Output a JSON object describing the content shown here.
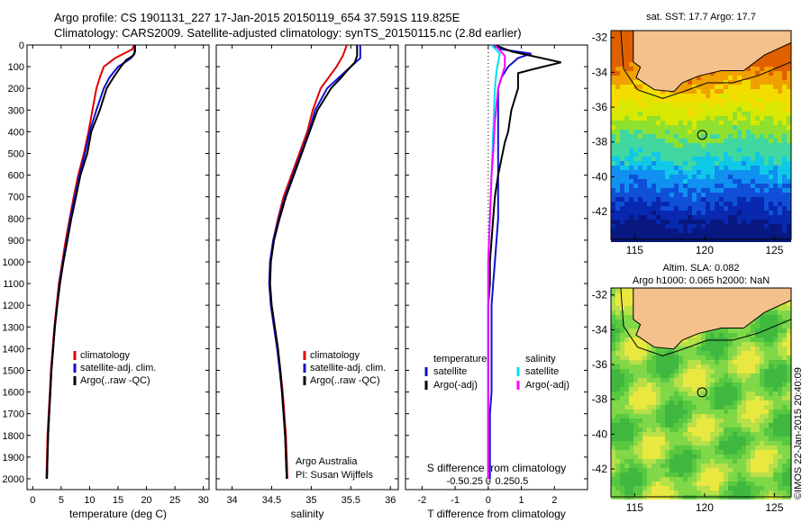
{
  "header": {
    "title_line1": "Argo profile: CS 1901131_227 17-Jan-2015 20150119_654 37.591S 119.825E",
    "title_line2": "Climatology: CARS2009. Satellite-adjusted climatology: synTS_20150115.nc (2.8d earlier)"
  },
  "depth_ticks": [
    0,
    100,
    200,
    300,
    400,
    500,
    600,
    700,
    800,
    900,
    1000,
    1100,
    1200,
    1300,
    1400,
    1500,
    1600,
    1700,
    1800,
    1900,
    2000
  ],
  "colors": {
    "climatology": "#e00000",
    "satellite": "#1010d0",
    "argo": "#000000",
    "argo_adj_sal": "#ff00ff",
    "satellite_sal": "#00e0f0"
  },
  "chart_data": [
    {
      "type": "line",
      "xlabel": "temperature (deg C)",
      "xlim": [
        -1,
        31
      ],
      "ylim": [
        2050,
        0
      ],
      "xticks": [
        0,
        5,
        10,
        15,
        20,
        25,
        30
      ],
      "legend": [
        "climatology",
        "satellite-adj. clim.",
        "Argo(..raw -QC)"
      ],
      "series": [
        {
          "name": "climatology",
          "color": "#e00000",
          "points": [
            [
              17.8,
              0
            ],
            [
              17.5,
              20
            ],
            [
              16,
              40
            ],
            [
              14.5,
              60
            ],
            [
              13.5,
              80
            ],
            [
              12.5,
              100
            ],
            [
              11.8,
              150
            ],
            [
              11.2,
              200
            ],
            [
              10.5,
              300
            ],
            [
              9.8,
              400
            ],
            [
              9,
              500
            ],
            [
              8,
              600
            ],
            [
              7.2,
              700
            ],
            [
              6.5,
              800
            ],
            [
              5.8,
              900
            ],
            [
              5.2,
              1000
            ],
            [
              4.6,
              1100
            ],
            [
              4.2,
              1200
            ],
            [
              3.8,
              1300
            ],
            [
              3.5,
              1400
            ],
            [
              3.2,
              1500
            ],
            [
              3,
              1600
            ],
            [
              2.8,
              1700
            ],
            [
              2.6,
              1800
            ],
            [
              2.5,
              1900
            ],
            [
              2.4,
              2000
            ]
          ]
        },
        {
          "name": "satellite-adj. clim.",
          "color": "#1010d0",
          "points": [
            [
              17.9,
              0
            ],
            [
              17.9,
              40
            ],
            [
              17.3,
              60
            ],
            [
              16.2,
              80
            ],
            [
              15,
              100
            ],
            [
              13.5,
              150
            ],
            [
              12.5,
              200
            ],
            [
              11.2,
              300
            ],
            [
              10,
              400
            ],
            [
              9.2,
              500
            ],
            [
              8.2,
              600
            ],
            [
              7.4,
              700
            ],
            [
              6.6,
              800
            ],
            [
              6,
              900
            ],
            [
              5.3,
              1000
            ],
            [
              4.7,
              1100
            ],
            [
              4.3,
              1200
            ],
            [
              3.9,
              1300
            ],
            [
              3.6,
              1400
            ],
            [
              3.3,
              1500
            ],
            [
              3.1,
              1600
            ],
            [
              2.9,
              1700
            ],
            [
              2.7,
              1800
            ],
            [
              2.6,
              1900
            ],
            [
              2.5,
              2000
            ]
          ]
        },
        {
          "name": "Argo(..raw -QC)",
          "color": "#000000",
          "points": [
            [
              18,
              0
            ],
            [
              18,
              30
            ],
            [
              17.6,
              50
            ],
            [
              16.4,
              70
            ],
            [
              15.5,
              100
            ],
            [
              14.2,
              150
            ],
            [
              13,
              200
            ],
            [
              11.8,
              300
            ],
            [
              10.3,
              400
            ],
            [
              9.6,
              500
            ],
            [
              8.4,
              600
            ],
            [
              7.6,
              700
            ],
            [
              6.8,
              800
            ],
            [
              6.1,
              900
            ],
            [
              5.4,
              1000
            ],
            [
              4.8,
              1100
            ],
            [
              4.3,
              1200
            ],
            [
              3.9,
              1300
            ],
            [
              3.6,
              1400
            ],
            [
              3.3,
              1500
            ],
            [
              3.1,
              1600
            ],
            [
              2.9,
              1700
            ],
            [
              2.7,
              1800
            ],
            [
              2.6,
              1900
            ],
            [
              2.5,
              2000
            ]
          ]
        }
      ]
    },
    {
      "type": "line",
      "xlabel": "salinity",
      "xlim": [
        33.8,
        36.1
      ],
      "ylim": [
        2050,
        0
      ],
      "xticks": [
        34,
        34.5,
        35,
        35.5,
        36
      ],
      "legend": [
        "climatology",
        "satellite-adj. clim.",
        "Argo(..raw -QC)"
      ],
      "annotation": [
        "Argo Australia",
        "PI: Susan Wijffels"
      ],
      "series": [
        {
          "name": "climatology",
          "color": "#e00000",
          "points": [
            [
              35.45,
              0
            ],
            [
              35.4,
              50
            ],
            [
              35.32,
              100
            ],
            [
              35.22,
              150
            ],
            [
              35.12,
              200
            ],
            [
              35.02,
              300
            ],
            [
              34.95,
              400
            ],
            [
              34.85,
              500
            ],
            [
              34.75,
              600
            ],
            [
              34.65,
              700
            ],
            [
              34.58,
              800
            ],
            [
              34.52,
              900
            ],
            [
              34.48,
              1000
            ],
            [
              34.47,
              1100
            ],
            [
              34.49,
              1200
            ],
            [
              34.53,
              1300
            ],
            [
              34.57,
              1400
            ],
            [
              34.61,
              1500
            ],
            [
              34.64,
              1600
            ],
            [
              34.66,
              1700
            ],
            [
              34.68,
              1800
            ],
            [
              34.69,
              1900
            ],
            [
              34.7,
              2000
            ]
          ]
        },
        {
          "name": "satellite-adj. clim.",
          "color": "#1010d0",
          "points": [
            [
              35.62,
              0
            ],
            [
              35.62,
              60
            ],
            [
              35.5,
              100
            ],
            [
              35.35,
              150
            ],
            [
              35.2,
              200
            ],
            [
              35.05,
              300
            ],
            [
              34.97,
              400
            ],
            [
              34.87,
              500
            ],
            [
              34.77,
              600
            ],
            [
              34.67,
              700
            ],
            [
              34.59,
              800
            ],
            [
              34.52,
              900
            ],
            [
              34.48,
              1000
            ],
            [
              34.47,
              1100
            ],
            [
              34.49,
              1200
            ],
            [
              34.53,
              1300
            ],
            [
              34.57,
              1400
            ],
            [
              34.6,
              1500
            ],
            [
              34.63,
              1600
            ],
            [
              34.65,
              1700
            ],
            [
              34.67,
              1800
            ],
            [
              34.68,
              1900
            ],
            [
              34.69,
              2000
            ]
          ]
        },
        {
          "name": "Argo(..raw -QC)",
          "color": "#000000",
          "points": [
            [
              35.58,
              0
            ],
            [
              35.58,
              50
            ],
            [
              35.55,
              80
            ],
            [
              35.45,
              120
            ],
            [
              35.38,
              150
            ],
            [
              35.25,
              200
            ],
            [
              35.08,
              300
            ],
            [
              34.98,
              400
            ],
            [
              34.88,
              500
            ],
            [
              34.78,
              600
            ],
            [
              34.68,
              700
            ],
            [
              34.6,
              800
            ],
            [
              34.53,
              900
            ],
            [
              34.49,
              1000
            ],
            [
              34.48,
              1100
            ],
            [
              34.5,
              1200
            ],
            [
              34.54,
              1300
            ],
            [
              34.58,
              1400
            ],
            [
              34.61,
              1500
            ],
            [
              34.63,
              1600
            ],
            [
              34.65,
              1700
            ],
            [
              34.67,
              1800
            ],
            [
              34.68,
              1900
            ],
            [
              34.69,
              2000
            ]
          ]
        }
      ]
    },
    {
      "type": "line",
      "xlabel": "T difference from climatology",
      "xlabel_top": "S difference from climatology",
      "xlim": [
        -2.5,
        3
      ],
      "ylim": [
        2050,
        0
      ],
      "xticks": [
        -2,
        -1,
        0,
        1,
        2
      ],
      "xticks_top": [
        "-0.5",
        "-0.25",
        "0",
        "0.25",
        "0.5"
      ],
      "legend_left_title": "temperature",
      "legend_right_title": "salinity",
      "legend_left": [
        "satellite",
        "Argo(-adj)"
      ],
      "legend_right": [
        "satellite",
        "Argo(-adj)"
      ],
      "series": [
        {
          "name": "temperature satellite",
          "color": "#1010d0",
          "points": [
            [
              0.1,
              0
            ],
            [
              0.4,
              20
            ],
            [
              1.3,
              40
            ],
            [
              0.9,
              60
            ],
            [
              0.6,
              100
            ],
            [
              0.4,
              150
            ],
            [
              0.3,
              200
            ],
            [
              0.3,
              300
            ],
            [
              0.3,
              400
            ],
            [
              0.3,
              500
            ],
            [
              0.3,
              600
            ],
            [
              0.3,
              700
            ],
            [
              0.3,
              800
            ],
            [
              0.25,
              900
            ],
            [
              0.2,
              1000
            ],
            [
              0.15,
              1100
            ],
            [
              0.1,
              1200
            ],
            [
              0.1,
              1300
            ],
            [
              0.1,
              1400
            ],
            [
              0.1,
              1500
            ],
            [
              0.1,
              1600
            ],
            [
              0.05,
              1700
            ],
            [
              0.05,
              1800
            ],
            [
              0.05,
              1900
            ],
            [
              0.05,
              2000
            ]
          ]
        },
        {
          "name": "temperature Argo(-adj)",
          "color": "#000000",
          "points": [
            [
              0.2,
              0
            ],
            [
              0.7,
              30
            ],
            [
              1.3,
              50
            ],
            [
              2.2,
              80
            ],
            [
              1.4,
              110
            ],
            [
              0.9,
              130
            ],
            [
              0.9,
              200
            ],
            [
              0.7,
              300
            ],
            [
              0.6,
              400
            ],
            [
              0.5,
              450
            ],
            [
              0.3,
              600
            ],
            [
              0.2,
              700
            ],
            [
              0.15,
              800
            ],
            [
              0.1,
              900
            ],
            [
              0.05,
              1000
            ],
            [
              0.05,
              1100
            ],
            [
              0,
              1200
            ],
            [
              0,
              1400
            ],
            [
              0,
              1600
            ],
            [
              0,
              1800
            ],
            [
              0,
              2000
            ]
          ]
        },
        {
          "name": "salinity satellite",
          "color": "#00e0f0",
          "points": [
            [
              0.1,
              0
            ],
            [
              0.35,
              40
            ],
            [
              0.3,
              80
            ],
            [
              0.25,
              120
            ],
            [
              0.2,
              200
            ],
            [
              0.15,
              400
            ],
            [
              0.1,
              600
            ],
            [
              0.05,
              800
            ],
            [
              0,
              1000
            ],
            [
              0,
              1200
            ],
            [
              0,
              1400
            ],
            [
              0,
              1600
            ],
            [
              0,
              1800
            ],
            [
              0,
              2000
            ]
          ]
        },
        {
          "name": "salinity Argo(-adj)",
          "color": "#ff00ff",
          "points": [
            [
              0.2,
              0
            ],
            [
              0.5,
              50
            ],
            [
              0.5,
              100
            ],
            [
              0.4,
              150
            ],
            [
              0.3,
              200
            ],
            [
              0.2,
              350
            ],
            [
              0.15,
              500
            ],
            [
              0.1,
              600
            ],
            [
              0.05,
              800
            ],
            [
              0,
              1000
            ],
            [
              0,
              1500
            ],
            [
              0,
              2000
            ]
          ]
        }
      ]
    }
  ],
  "maps": [
    {
      "title": "sat. SST: 17.7 Argo: 17.7",
      "xticks": [
        115,
        120,
        125
      ],
      "yticks": [
        -32,
        -34,
        -36,
        -38,
        -40,
        -42
      ],
      "kind": "sst"
    },
    {
      "title_line1": "Altim. SLA: 0.082",
      "title_line2": "Argo h1000: 0.065 h2000: NaN",
      "xticks": [
        115,
        120,
        125
      ],
      "yticks": [
        -32,
        -34,
        -36,
        -38,
        -40,
        -42
      ],
      "kind": "sla"
    }
  ],
  "copyright": "©IMOS 22-Jan-2015 20:40:09"
}
